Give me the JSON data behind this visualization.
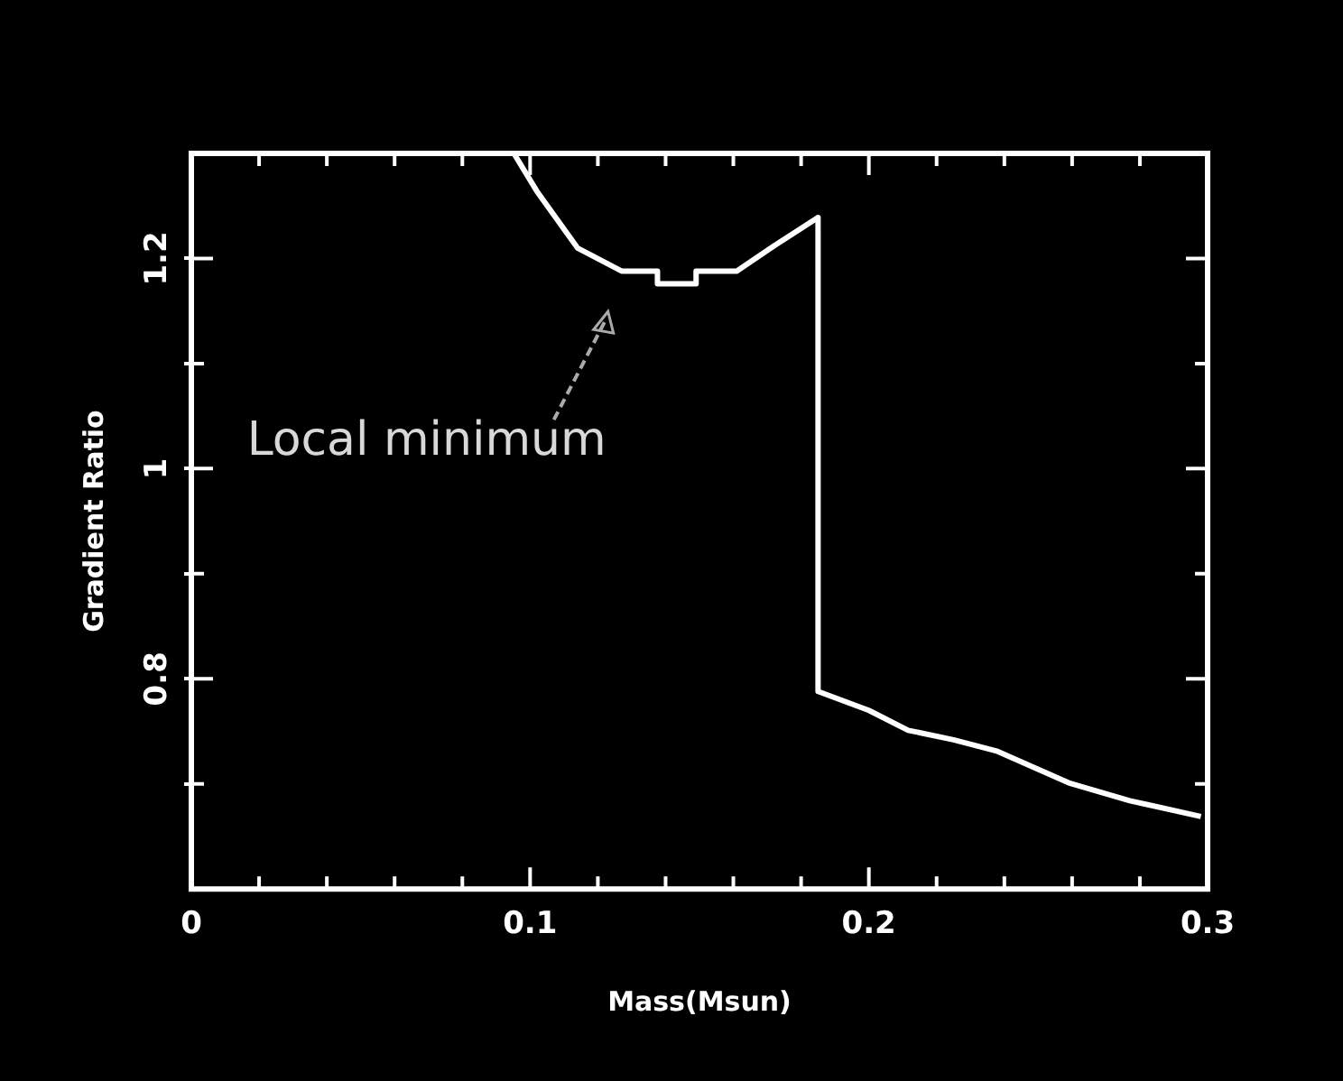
{
  "chart_data": {
    "type": "line",
    "xlabel": "Mass(Msun)",
    "ylabel": "Gradient Ratio",
    "x": [
      0.0952,
      0.102,
      0.114,
      0.127,
      0.1376,
      0.1376,
      0.149,
      0.149,
      0.161,
      0.172,
      0.185,
      0.185,
      0.2,
      0.2116,
      0.225,
      0.238,
      0.259,
      0.277,
      0.298
    ],
    "series": [
      {
        "color": "#ffffff",
        "values": [
          1.3,
          1.264,
          1.21,
          1.188,
          1.188,
          1.176,
          1.176,
          1.188,
          1.188,
          1.212,
          1.239,
          0.788,
          0.77,
          0.751,
          0.742,
          0.731,
          0.701,
          0.684,
          0.669
        ]
      }
    ],
    "xlim": [
      0,
      0.3
    ],
    "ylim": [
      0.6,
      1.3
    ],
    "xticks": [
      0,
      {
        "value": 0.02,
        "label": null
      },
      {
        "value": 0.04,
        "label": null
      },
      {
        "value": 0.06,
        "label": null
      },
      {
        "value": 0.08,
        "label": null
      },
      0.1,
      {
        "value": 0.12,
        "label": null
      },
      {
        "value": 0.14,
        "label": null
      },
      {
        "value": 0.16,
        "label": null
      },
      {
        "value": 0.18,
        "label": null
      },
      0.2,
      {
        "value": 0.22,
        "label": null
      },
      {
        "value": 0.24,
        "label": null
      },
      {
        "value": 0.26,
        "label": null
      },
      {
        "value": 0.28,
        "label": null
      },
      0.3
    ],
    "yticks": [
      {
        "value": 0.7,
        "label": null
      },
      0.8,
      {
        "value": 0.9,
        "label": null
      },
      1,
      {
        "value": 1.1,
        "label": null
      },
      1.2
    ],
    "annotations": [
      "Local minimum"
    ],
    "grid": false,
    "legend": false,
    "marker": "none",
    "line_style": "solid"
  }
}
